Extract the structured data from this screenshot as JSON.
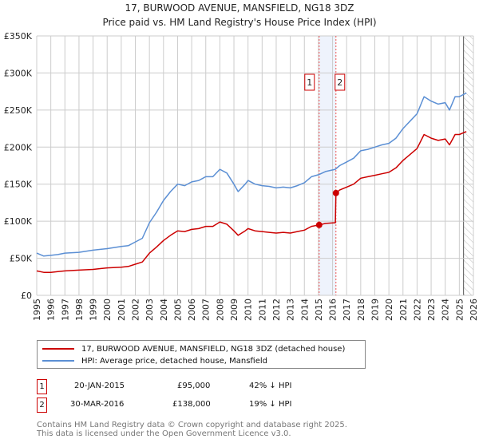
{
  "chart_data": {
    "type": "line",
    "title": "17, BURWOOD AVENUE, MANSFIELD, NG18 3DZ",
    "subtitle": "Price paid vs. HM Land Registry's House Price Index (HPI)",
    "xlim": [
      1995,
      2026
    ],
    "ylim": [
      0,
      350000
    ],
    "x_ticks": [
      "1995",
      "1996",
      "1997",
      "1998",
      "1999",
      "2000",
      "2001",
      "2002",
      "2003",
      "2004",
      "2005",
      "2006",
      "2007",
      "2008",
      "2009",
      "2010",
      "2011",
      "2012",
      "2013",
      "2014",
      "2015",
      "2016",
      "2017",
      "2018",
      "2019",
      "2020",
      "2021",
      "2022",
      "2023",
      "2024",
      "2025",
      "2026"
    ],
    "y_ticks": [
      {
        "v": 0,
        "label": "£0"
      },
      {
        "v": 50000,
        "label": "£50K"
      },
      {
        "v": 100000,
        "label": "£100K"
      },
      {
        "v": 150000,
        "label": "£150K"
      },
      {
        "v": 200000,
        "label": "£200K"
      },
      {
        "v": 250000,
        "label": "£250K"
      },
      {
        "v": 300000,
        "label": "£300K"
      },
      {
        "v": 350000,
        "label": "£350K"
      }
    ],
    "grid": true,
    "series": [
      {
        "name": "17, BURWOOD AVENUE, MANSFIELD, NG18 3DZ (detached house)",
        "color": "#cc0000",
        "x": [
          1995,
          1995.5,
          1996,
          1996.5,
          1997,
          1998,
          1999,
          2000,
          2001,
          2001.5,
          2002,
          2002.5,
          2003,
          2003.5,
          2004,
          2004.5,
          2005,
          2005.5,
          2006,
          2006.5,
          2007,
          2007.5,
          2008,
          2008.5,
          2009,
          2009.3,
          2009.8,
          2010,
          2010.5,
          2011,
          2011.5,
          2012,
          2012.5,
          2013,
          2013.5,
          2014,
          2014.5,
          2015.05,
          2015.5,
          2016.2,
          2016.24,
          2016.5,
          2017,
          2017.5,
          2018,
          2018.5,
          2019,
          2019.5,
          2020,
          2020.5,
          2021,
          2021.5,
          2022,
          2022.5,
          2023,
          2023.5,
          2024,
          2024.3,
          2024.7,
          2025,
          2025.5
        ],
        "y": [
          33000,
          31000,
          31000,
          32000,
          33000,
          34000,
          35000,
          37000,
          38000,
          39000,
          42000,
          45000,
          57000,
          65000,
          74000,
          81000,
          87000,
          86000,
          89000,
          90000,
          93000,
          93000,
          99000,
          96000,
          87000,
          81000,
          87000,
          90000,
          87000,
          86000,
          85000,
          84000,
          85000,
          84000,
          86000,
          88000,
          93000,
          95000,
          97000,
          98000,
          138000,
          142000,
          146000,
          150000,
          158000,
          160000,
          162000,
          164000,
          166000,
          172000,
          182000,
          190000,
          198000,
          217000,
          212000,
          209000,
          211000,
          203000,
          217000,
          217000,
          221000
        ]
      },
      {
        "name": "HPI: Average price, detached house, Mansfield",
        "color": "#5b8fd4",
        "x": [
          1995,
          1995.5,
          1996,
          1996.5,
          1997,
          1998,
          1999,
          2000,
          2001,
          2001.5,
          2002,
          2002.5,
          2003,
          2003.5,
          2004,
          2004.5,
          2005,
          2005.5,
          2006,
          2006.5,
          2007,
          2007.5,
          2008,
          2008.5,
          2009,
          2009.3,
          2009.8,
          2010,
          2010.5,
          2011,
          2011.5,
          2012,
          2012.5,
          2013,
          2013.5,
          2014,
          2014.5,
          2015.05,
          2015.5,
          2016.2,
          2016.5,
          2017,
          2017.5,
          2018,
          2018.5,
          2019,
          2019.5,
          2020,
          2020.5,
          2021,
          2021.5,
          2022,
          2022.5,
          2023,
          2023.5,
          2024,
          2024.3,
          2024.7,
          2025,
          2025.5
        ],
        "y": [
          57000,
          53000,
          54000,
          55000,
          57000,
          58000,
          61000,
          63000,
          66000,
          67000,
          72000,
          77000,
          98000,
          112000,
          128000,
          140000,
          150000,
          148000,
          153000,
          155000,
          160000,
          160000,
          170000,
          165000,
          150000,
          140000,
          150000,
          155000,
          150000,
          148000,
          147000,
          145000,
          146000,
          145000,
          148000,
          152000,
          160000,
          163000,
          167000,
          170000,
          175000,
          180000,
          185000,
          195000,
          197000,
          200000,
          203000,
          205000,
          212000,
          225000,
          235000,
          245000,
          268000,
          262000,
          258000,
          260000,
          250000,
          268000,
          268000,
          273000
        ]
      }
    ],
    "sales": [
      {
        "id": "1",
        "date": "20-JAN-2015",
        "x": 2015.05,
        "price": 95000,
        "price_label": "£95,000",
        "hpi_label": "42% ↓ HPI"
      },
      {
        "id": "2",
        "date": "30-MAR-2016",
        "x": 2016.24,
        "price": 138000,
        "price_label": "£138,000",
        "hpi_label": "19% ↓ HPI"
      }
    ],
    "forecast_start": 2025.3,
    "legend_position": "bottom"
  },
  "footer": {
    "line1": "Contains HM Land Registry data © Crown copyright and database right 2025.",
    "line2": "This data is licensed under the Open Government Licence v3.0."
  }
}
